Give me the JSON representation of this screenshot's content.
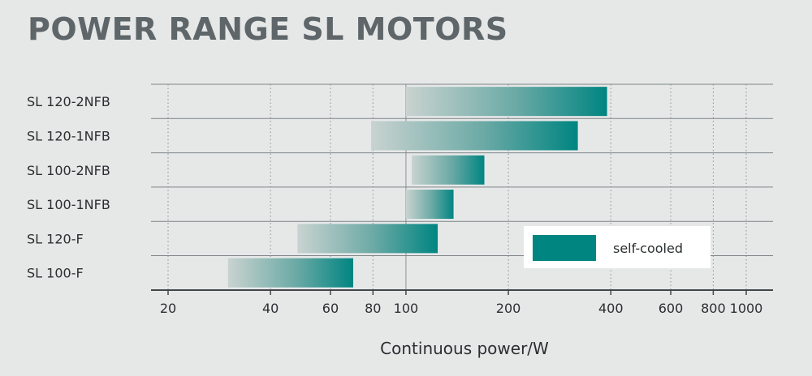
{
  "chart_data": {
    "type": "bar",
    "orientation": "horizontal-range",
    "title": "POWER RANGE SL MOTORS",
    "xlabel": "Continuous power/W",
    "xscale": "log",
    "xlim": [
      18,
      1050
    ],
    "xticks": [
      20,
      40,
      60,
      80,
      100,
      200,
      400,
      600,
      800,
      1000
    ],
    "xtick_labels": [
      "20",
      "40",
      "60",
      "80",
      "100",
      "200",
      "400",
      "600",
      "800",
      "1000"
    ],
    "grid": "vertical-dotted",
    "categories": [
      "SL 120-2NFB",
      "SL 120-1NFB",
      "SL 100-2NFB",
      "SL 100-1NFB",
      "SL 120-F",
      "SL 100-F"
    ],
    "ranges": [
      {
        "low": 100,
        "high": 390
      },
      {
        "low": 79,
        "high": 320
      },
      {
        "low": 104,
        "high": 170
      },
      {
        "low": 100,
        "high": 138
      },
      {
        "low": 48,
        "high": 124
      },
      {
        "low": 30,
        "high": 70
      }
    ],
    "legend": {
      "label": "self-cooled",
      "placement": "right"
    },
    "colors": {
      "bar_start": "#c9d3d0",
      "bar_end": "#008581",
      "grid": "#888e90",
      "axis": "#40464a",
      "legend_bg": "#ffffff"
    }
  }
}
